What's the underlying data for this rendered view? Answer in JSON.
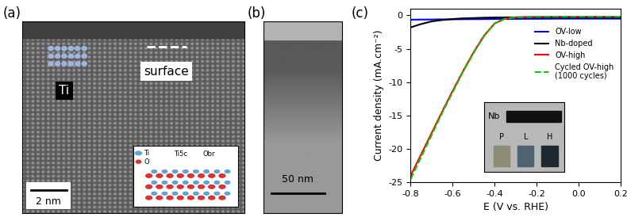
{
  "panels": [
    {
      "label": "(a)",
      "element_label": "Ti",
      "region_label": "surface",
      "scale_bar": "2 nm",
      "inset_labels": [
        "Ti",
        "O",
        "Ti5c",
        "Obr"
      ]
    },
    {
      "label": "(b)",
      "scale_bar": "50 nm"
    }
  ],
  "chart_data": {
    "panel_label": "(c)",
    "type": "line",
    "x_label": "E (V vs. RHE)",
    "y_label": "Current density (mA.cm⁻²)",
    "x": [
      -0.8,
      -0.75,
      -0.7,
      -0.65,
      -0.6,
      -0.55,
      -0.5,
      -0.45,
      -0.4,
      -0.35,
      -0.3,
      -0.25,
      -0.2,
      -0.15,
      -0.1,
      -0.05,
      0.0,
      0.05,
      0.1,
      0.15,
      0.2
    ],
    "series": [
      {
        "name": "OV-low",
        "color": "#0000ff",
        "line_style": "solid",
        "values": [
          -0.65,
          -0.63,
          -0.62,
          -0.6,
          -0.6,
          -0.58,
          -0.57,
          -0.56,
          -0.55,
          -0.54,
          -0.53,
          -0.52,
          -0.52,
          -0.51,
          -0.5,
          -0.5,
          -0.5,
          -0.5,
          -0.5,
          -0.5,
          -0.5
        ]
      },
      {
        "name": "Nb-doped",
        "color": "#000000",
        "line_style": "solid",
        "values": [
          -1.8,
          -1.3,
          -0.9,
          -0.7,
          -0.55,
          -0.45,
          -0.4,
          -0.35,
          -0.32,
          -0.3,
          -0.3,
          -0.3,
          -0.3,
          -0.3,
          -0.3,
          -0.3,
          -0.3,
          -0.3,
          -0.3,
          -0.3,
          -0.3
        ]
      },
      {
        "name": "OV-high",
        "color": "#ff0000",
        "line_style": "solid",
        "values": [
          -24.0,
          -20.8,
          -17.6,
          -14.4,
          -11.3,
          -8.3,
          -5.5,
          -3.0,
          -1.2,
          -0.5,
          -0.3,
          -0.25,
          -0.22,
          -0.2,
          -0.2,
          -0.2,
          -0.2,
          -0.2,
          -0.2,
          -0.2,
          -0.2
        ]
      },
      {
        "name": "Cycled OV-high\n(1000 cycles)",
        "color": "#00cc00",
        "line_style": "dashed",
        "values": [
          -24.5,
          -21.2,
          -17.9,
          -14.6,
          -11.5,
          -8.4,
          -5.6,
          -3.1,
          -1.2,
          -0.5,
          -0.3,
          -0.25,
          -0.22,
          -0.2,
          -0.2,
          -0.2,
          -0.2,
          -0.2,
          -0.2,
          -0.2,
          -0.2
        ]
      }
    ],
    "xlim": [
      -0.8,
      0.2
    ],
    "xticks": [
      -0.8,
      -0.6,
      -0.4,
      -0.2,
      0.0,
      0.2
    ],
    "ylim": [
      -25,
      1
    ],
    "yticks": [
      -25,
      -20,
      -15,
      -10,
      -5,
      0
    ],
    "legend": "upper right",
    "inset_labels": {
      "substrate": "Nb",
      "samples": [
        "P",
        "L",
        "H"
      ]
    }
  }
}
